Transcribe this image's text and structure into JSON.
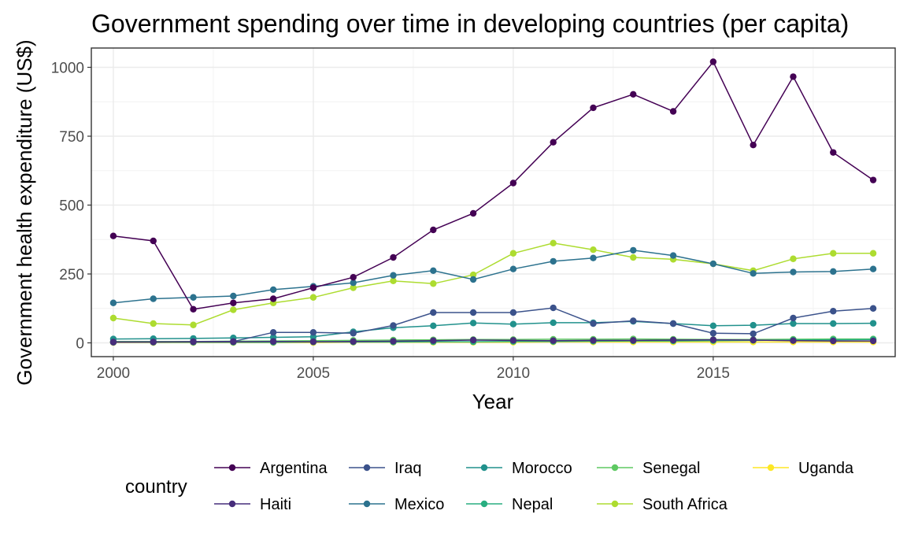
{
  "chart_data": {
    "type": "line",
    "title": "Government spending over time in developing countries (per capita)",
    "xlabel": "Year",
    "ylabel": "Government health expenditure (US$)",
    "xlim": [
      1999.45,
      2019.55
    ],
    "ylim": [
      -50,
      1070
    ],
    "x_ticks": [
      2000,
      2005,
      2010,
      2015
    ],
    "y_ticks": [
      0,
      250,
      500,
      750,
      1000
    ],
    "grid": true,
    "legend": {
      "title": "country",
      "position": "bottom"
    },
    "x": [
      2000,
      2001,
      2002,
      2003,
      2004,
      2005,
      2006,
      2007,
      2008,
      2009,
      2010,
      2011,
      2012,
      2013,
      2014,
      2015,
      2016,
      2017,
      2018,
      2019
    ],
    "series": [
      {
        "name": "Argentina",
        "color": "#440154",
        "values": [
          388,
          370,
          122,
          145,
          160,
          200,
          238,
          310,
          410,
          470,
          580,
          728,
          853,
          902,
          840,
          1020,
          718,
          966,
          691,
          591
        ]
      },
      {
        "name": "Haiti",
        "color": "#472d7b",
        "values": [
          3,
          3,
          4,
          4,
          5,
          4,
          5,
          6,
          8,
          10,
          9,
          8,
          9,
          9,
          10,
          11,
          10,
          8,
          7,
          7
        ]
      },
      {
        "name": "Iraq",
        "color": "#3b528b",
        "values": [
          2,
          3,
          4,
          5,
          38,
          38,
          35,
          63,
          110,
          110,
          110,
          127,
          70,
          80,
          70,
          35,
          33,
          90,
          115,
          125
        ]
      },
      {
        "name": "Mexico",
        "color": "#2c728e",
        "values": [
          145,
          160,
          165,
          170,
          193,
          205,
          218,
          245,
          262,
          230,
          268,
          296,
          308,
          336,
          317,
          287,
          252,
          257,
          259,
          268
        ]
      },
      {
        "name": "Morocco",
        "color": "#21918c",
        "values": [
          14,
          15,
          16,
          18,
          20,
          22,
          40,
          55,
          62,
          72,
          68,
          73,
          73,
          78,
          70,
          62,
          64,
          70,
          70,
          71
        ]
      },
      {
        "name": "Nepal",
        "color": "#28ae80",
        "values": [
          2,
          2,
          2,
          2,
          2,
          3,
          3,
          3,
          4,
          4,
          5,
          5,
          6,
          7,
          7,
          8,
          9,
          10,
          11,
          12
        ]
      },
      {
        "name": "Senegal",
        "color": "#5ec962",
        "values": [
          5,
          5,
          5,
          6,
          7,
          8,
          9,
          10,
          11,
          12,
          12,
          13,
          13,
          14,
          13,
          12,
          12,
          13,
          14,
          14
        ]
      },
      {
        "name": "South Africa",
        "color": "#addc30",
        "values": [
          90,
          70,
          65,
          120,
          145,
          165,
          200,
          225,
          215,
          247,
          325,
          362,
          338,
          310,
          303,
          287,
          262,
          305,
          325,
          325
        ]
      },
      {
        "name": "Uganda",
        "color": "#fde725",
        "values": [
          1,
          1,
          1,
          1,
          1,
          1,
          2,
          2,
          2,
          2,
          2,
          3,
          3,
          3,
          3,
          3,
          3,
          3,
          3,
          3
        ]
      }
    ]
  }
}
